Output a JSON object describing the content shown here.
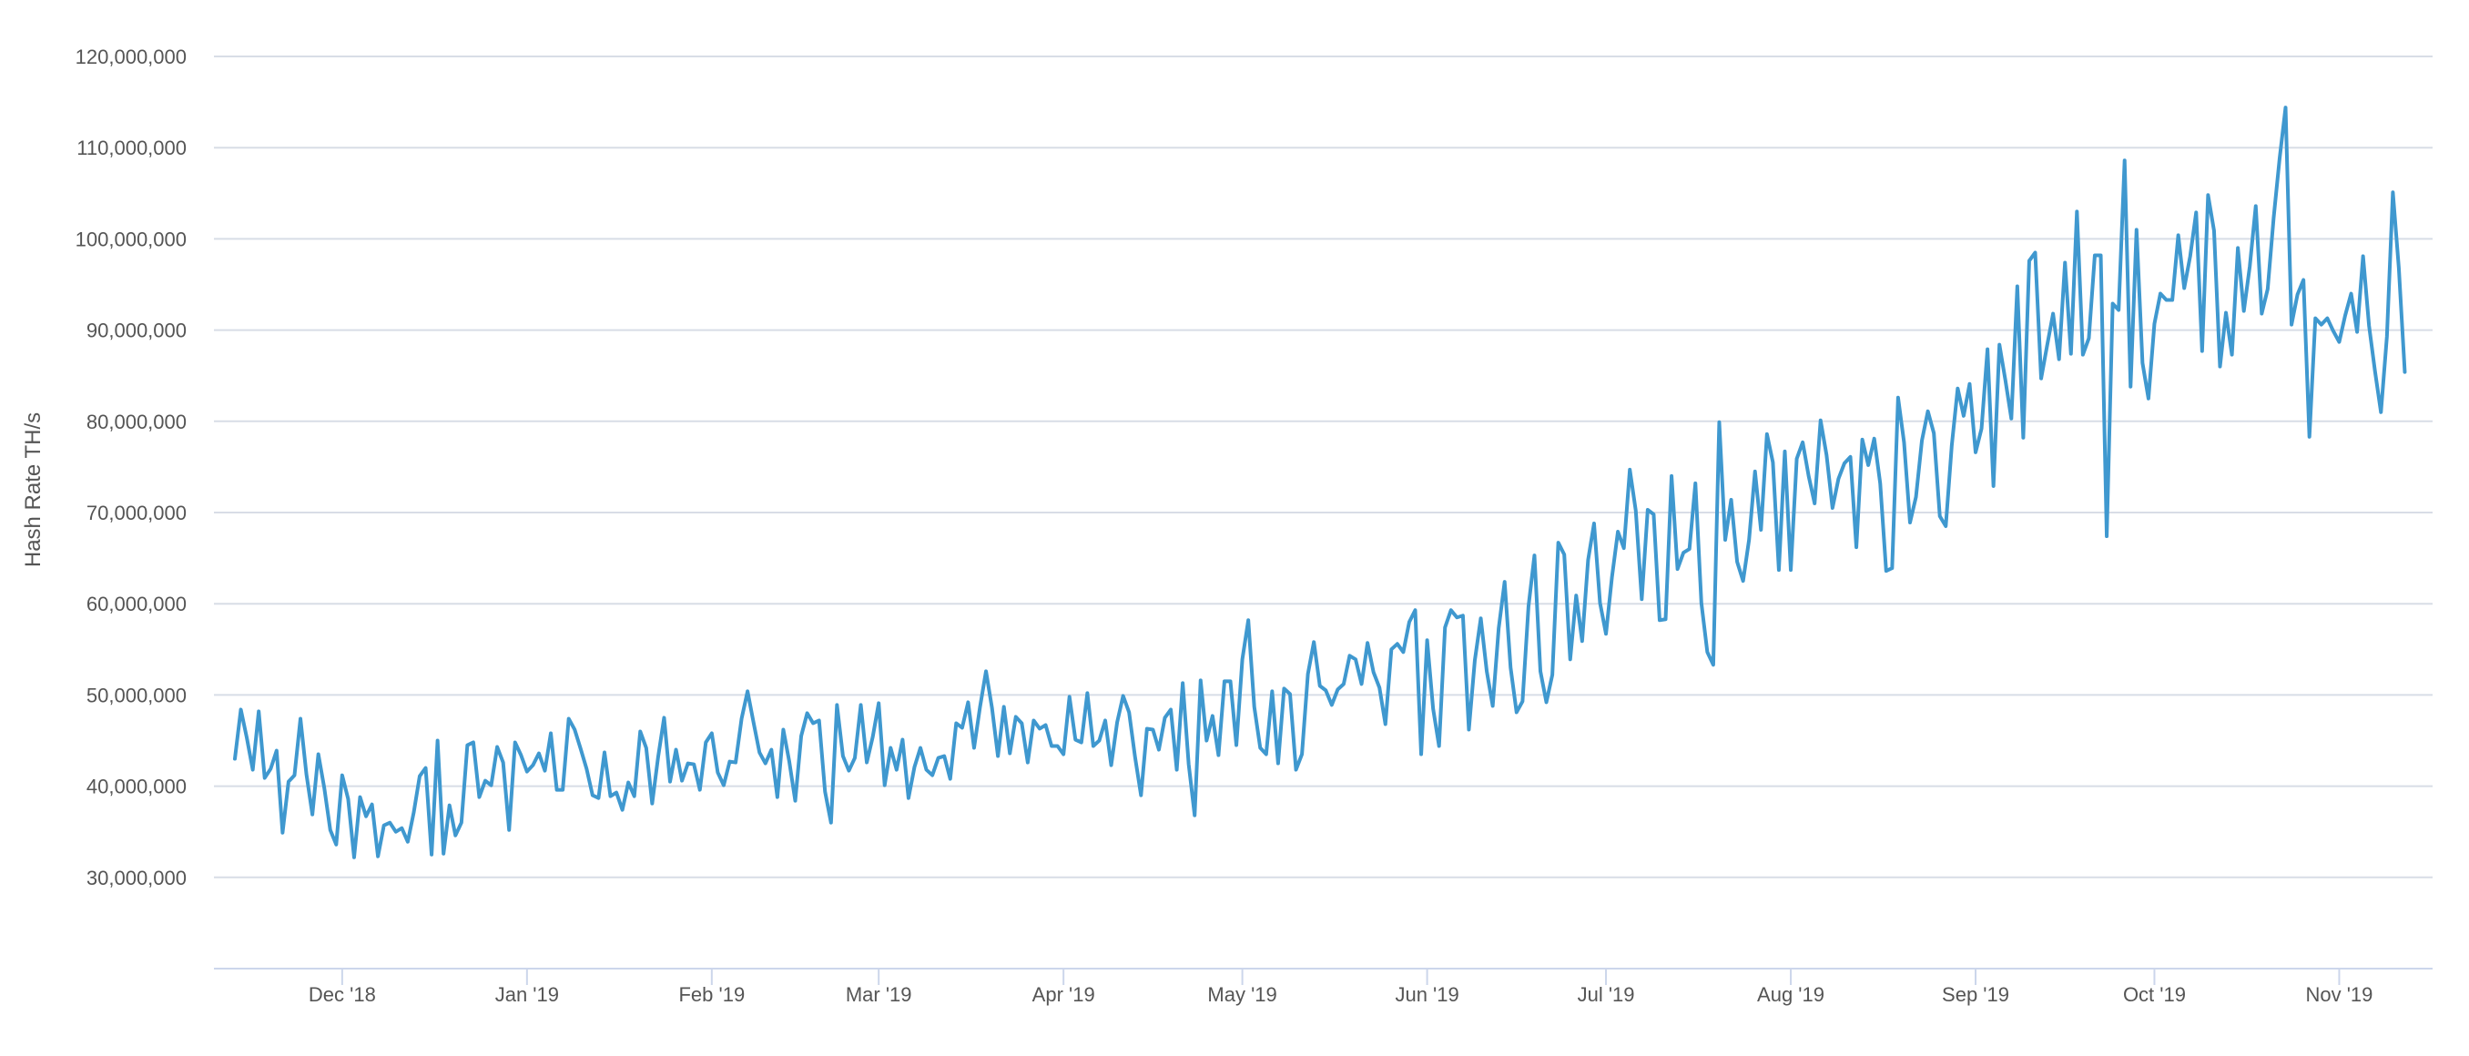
{
  "chart_data": {
    "type": "line",
    "title": "",
    "xlabel": "",
    "ylabel": "Hash Rate TH/s",
    "x_start": "2018-11-13",
    "x_step_days": 1,
    "ylim": [
      20000000,
      120000000
    ],
    "y_ticks": [
      {
        "value": 30000000,
        "label": "30,000,000"
      },
      {
        "value": 40000000,
        "label": "40,000,000"
      },
      {
        "value": 50000000,
        "label": "50,000,000"
      },
      {
        "value": 60000000,
        "label": "60,000,000"
      },
      {
        "value": 70000000,
        "label": "70,000,000"
      },
      {
        "value": 80000000,
        "label": "80,000,000"
      },
      {
        "value": 90000000,
        "label": "90,000,000"
      },
      {
        "value": 100000000,
        "label": "100,000,000"
      },
      {
        "value": 110000000,
        "label": "110,000,000"
      },
      {
        "value": 120000000,
        "label": "120,000,000"
      }
    ],
    "x_ticks": [
      {
        "date": "2018-12-01",
        "label": "Dec '18"
      },
      {
        "date": "2019-01-01",
        "label": "Jan '19"
      },
      {
        "date": "2019-02-01",
        "label": "Feb '19"
      },
      {
        "date": "2019-03-01",
        "label": "Mar '19"
      },
      {
        "date": "2019-04-01",
        "label": "Apr '19"
      },
      {
        "date": "2019-05-01",
        "label": "May '19"
      },
      {
        "date": "2019-06-01",
        "label": "Jun '19"
      },
      {
        "date": "2019-07-01",
        "label": "Jul '19"
      },
      {
        "date": "2019-08-01",
        "label": "Aug '19"
      },
      {
        "date": "2019-09-01",
        "label": "Sep '19"
      },
      {
        "date": "2019-10-01",
        "label": "Oct '19"
      },
      {
        "date": "2019-11-01",
        "label": "Nov '19"
      }
    ],
    "grid": true,
    "legend": "none",
    "colors": {
      "series": "#3f98cf",
      "grid": "#d8dde6",
      "axis": "#ccd6eb",
      "text": "#555555"
    },
    "series": [
      {
        "values": [
          43.0,
          48.4,
          45.3,
          41.8,
          48.2,
          40.9,
          41.9,
          43.9,
          34.9,
          40.5,
          41.2,
          47.4,
          41.3,
          36.9,
          43.5,
          39.8,
          35.2,
          33.6,
          41.2,
          38.6,
          32.2,
          38.8,
          36.7,
          38.0,
          32.3,
          35.7,
          36.0,
          35.0,
          35.4,
          33.9,
          37.1,
          41.1,
          42.0,
          32.5,
          45.0,
          32.6,
          37.9,
          34.6,
          36.0,
          44.5,
          44.8,
          38.8,
          40.6,
          40.1,
          44.3,
          42.6,
          35.2,
          44.8,
          43.4,
          41.6,
          42.3,
          43.6,
          41.7,
          45.8,
          39.6,
          39.6,
          47.4,
          46.2,
          44.1,
          41.9,
          39.0,
          38.7,
          43.7,
          38.9,
          39.3,
          37.4,
          40.4,
          38.9,
          46.0,
          44.2,
          38.1,
          43.2,
          47.5,
          40.5,
          44.0,
          40.6,
          42.5,
          42.4,
          39.6,
          44.8,
          45.8,
          41.5,
          40.1,
          42.7,
          42.6,
          47.4,
          50.4,
          47.0,
          43.7,
          42.5,
          44.0,
          38.8,
          46.2,
          42.7,
          38.4,
          45.5,
          48.0,
          46.9,
          47.2,
          39.4,
          36.0,
          48.9,
          43.3,
          41.7,
          43.1,
          48.9,
          42.6,
          45.4,
          49.1,
          40.1,
          44.2,
          41.8,
          45.1,
          38.7,
          42.1,
          44.2,
          41.8,
          41.2,
          43.1,
          43.3,
          40.8,
          46.9,
          46.4,
          49.2,
          44.2,
          48.7,
          52.6,
          48.6,
          43.3,
          48.7,
          43.6,
          47.6,
          46.9,
          42.6,
          47.2,
          46.3,
          46.7,
          44.4,
          44.4,
          43.5,
          49.8,
          45.1,
          44.8,
          50.2,
          44.4,
          45.0,
          47.2,
          42.3,
          47.0,
          49.9,
          48.1,
          43.2,
          39.0,
          46.3,
          46.2,
          44.0,
          47.5,
          48.4,
          41.8,
          51.3,
          42.4,
          36.8,
          51.6,
          45.0,
          47.7,
          43.4,
          51.5,
          51.5,
          44.5,
          53.9,
          58.2,
          48.7,
          44.2,
          43.5,
          50.4,
          42.5,
          50.7,
          50.1,
          41.8,
          43.5,
          52.3,
          55.8,
          51.0,
          50.5,
          48.9,
          50.6,
          51.2,
          54.3,
          53.9,
          51.2,
          55.7,
          52.5,
          50.8,
          46.8,
          55.0,
          55.6,
          54.7,
          58.0,
          59.3,
          43.5,
          56.0,
          48.5,
          44.4,
          57.4,
          59.3,
          58.5,
          58.7,
          46.2,
          53.8,
          58.4,
          52.6,
          48.8,
          57.3,
          62.4,
          53.0,
          48.1,
          49.3,
          59.7,
          65.3,
          52.6,
          49.2,
          52.2,
          66.7,
          65.4,
          53.9,
          60.9,
          55.9,
          64.8,
          68.8,
          60.1,
          56.7,
          62.9,
          67.9,
          66.1,
          74.7,
          70.2,
          60.5,
          70.3,
          69.8,
          58.2,
          58.3,
          74.0,
          63.8,
          65.6,
          66.0,
          73.2,
          60.1,
          54.7,
          53.3,
          79.9,
          67.0,
          71.4,
          64.6,
          62.5,
          67.0,
          74.5,
          68.1,
          78.6,
          75.5,
          63.7,
          76.7,
          63.7,
          75.9,
          77.7,
          74.0,
          71.0,
          80.1,
          76.3,
          70.5,
          73.7,
          75.4,
          76.1,
          66.2,
          78.0,
          75.2,
          78.1,
          73.2,
          63.6,
          63.9,
          82.6,
          77.7,
          68.9,
          71.7,
          77.9,
          81.1,
          78.7,
          69.6,
          68.5,
          77.3,
          83.6,
          80.6,
          84.1,
          76.6,
          79.2,
          87.9,
          72.9,
          88.4,
          84.5,
          80.3,
          94.8,
          78.2,
          97.6,
          98.5,
          84.7,
          88.3,
          91.8,
          86.8,
          97.4,
          87.4,
          103.0,
          87.3,
          89.1,
          98.2,
          98.2,
          67.4,
          92.9,
          92.2,
          108.6,
          83.8,
          101.0,
          86.4,
          82.5,
          90.7,
          94.0,
          93.3,
          93.3,
          100.4,
          94.6,
          98.1,
          102.9,
          87.7,
          104.8,
          100.9,
          86.0,
          91.9,
          87.3,
          99.0,
          92.1,
          97.0,
          103.6,
          91.8,
          94.5,
          102.3,
          108.8,
          114.4,
          90.6,
          93.9,
          95.5,
          78.3,
          91.3,
          90.6,
          91.3,
          89.9,
          88.7,
          91.6,
          94.0,
          89.8,
          98.1,
          90.5,
          85.5,
          81.0,
          89.3,
          105.1,
          96.8,
          85.4
        ]
      }
    ]
  }
}
